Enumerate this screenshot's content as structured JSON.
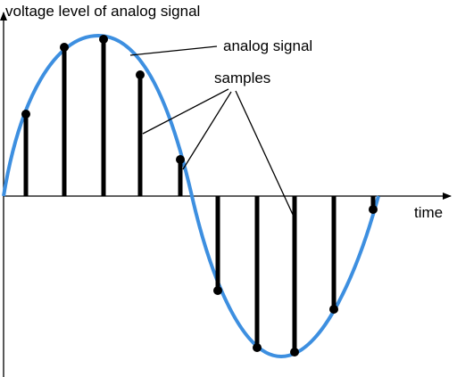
{
  "labels": {
    "y_axis": "voltage level of analog signal",
    "curve": "analog signal",
    "samples": "samples",
    "x_axis": "time"
  }
}
